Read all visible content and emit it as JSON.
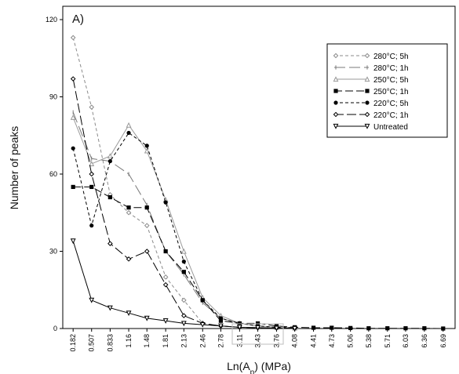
{
  "panel_label": "A)",
  "chart_data": {
    "type": "line",
    "title": "",
    "xlabel": "Ln(A",
    "xlabel_sub": "p",
    "xlabel_tail": ") (MPa)",
    "ylabel": "Number of peaks",
    "ylim": [
      0,
      120
    ],
    "yticks": [
      "0",
      "30",
      "60",
      "90",
      "120"
    ],
    "x_tick_labels": [
      "0.182",
      "0.507",
      "0.833",
      "1.16",
      "1.48",
      "1.81",
      "2.13",
      "2.46",
      "2.78",
      "3.11",
      "3.43",
      "3.76",
      "4.08",
      "4.41",
      "4.73",
      "5.06",
      "5.38",
      "5.71",
      "6.03",
      "6.36",
      "6.69"
    ],
    "legend_position": "top-right",
    "series": [
      {
        "name": "280°C; 5h",
        "color": "#8a8a8a",
        "dash": "4,3",
        "marker": "open-diamond",
        "points": [
          [
            0.182,
            113
          ],
          [
            0.507,
            86
          ],
          [
            0.833,
            52
          ],
          [
            1.16,
            45
          ],
          [
            1.48,
            40
          ],
          [
            1.81,
            20
          ],
          [
            2.13,
            11
          ],
          [
            2.46,
            2
          ],
          [
            2.78,
            1
          ],
          [
            3.11,
            0.5
          ],
          [
            3.43,
            0.3
          ],
          [
            3.76,
            0.2
          ],
          [
            4.08,
            0.1
          ]
        ]
      },
      {
        "name": "280°C; 1h",
        "color": "#7a7a7a",
        "dash": "14,5",
        "marker": "bar",
        "points": [
          [
            0.182,
            84
          ],
          [
            0.507,
            66
          ],
          [
            0.833,
            65
          ],
          [
            1.16,
            60
          ],
          [
            1.48,
            48
          ],
          [
            1.81,
            30
          ],
          [
            2.13,
            21
          ],
          [
            2.46,
            10
          ],
          [
            2.78,
            4
          ],
          [
            3.11,
            2
          ],
          [
            3.43,
            1
          ],
          [
            3.76,
            0.5
          ],
          [
            4.08,
            0.2
          ]
        ]
      },
      {
        "name": "250°C; 5h",
        "color": "#9a9a9a",
        "dash": "",
        "marker": "open-triangle",
        "points": [
          [
            0.182,
            82
          ],
          [
            0.507,
            64
          ],
          [
            0.833,
            67
          ],
          [
            1.16,
            79
          ],
          [
            1.48,
            69
          ],
          [
            1.81,
            50
          ],
          [
            2.13,
            30
          ],
          [
            2.46,
            12
          ],
          [
            2.78,
            5
          ],
          [
            3.11,
            2
          ],
          [
            3.43,
            1
          ],
          [
            3.76,
            0.5
          ],
          [
            4.08,
            0.2
          ]
        ]
      },
      {
        "name": "250°C; 1h",
        "color": "#000000",
        "dash": "10,4",
        "marker": "square",
        "points": [
          [
            0.182,
            55
          ],
          [
            0.507,
            55
          ],
          [
            0.833,
            51
          ],
          [
            1.16,
            47
          ],
          [
            1.48,
            47
          ],
          [
            1.81,
            30
          ],
          [
            2.13,
            22
          ],
          [
            2.46,
            11
          ],
          [
            2.78,
            3
          ],
          [
            3.11,
            2
          ],
          [
            3.43,
            2
          ],
          [
            3.76,
            1
          ],
          [
            4.08,
            0.5
          ],
          [
            4.41,
            0.3
          ],
          [
            4.73,
            0.3
          ],
          [
            5.06,
            0.2
          ],
          [
            5.38,
            0.1
          ],
          [
            5.71,
            0.1
          ],
          [
            6.03,
            0.1
          ],
          [
            6.36,
            0.1
          ],
          [
            6.69,
            0
          ]
        ]
      },
      {
        "name": "220°C; 5h",
        "color": "#000000",
        "dash": "4,3",
        "marker": "circle",
        "points": [
          [
            0.182,
            70
          ],
          [
            0.507,
            40
          ],
          [
            0.833,
            65
          ],
          [
            1.16,
            76
          ],
          [
            1.48,
            71
          ],
          [
            1.81,
            49
          ],
          [
            2.13,
            26
          ],
          [
            2.46,
            11
          ],
          [
            2.78,
            4
          ],
          [
            3.11,
            2
          ],
          [
            3.43,
            1
          ],
          [
            3.76,
            0.5
          ],
          [
            4.08,
            0.3
          ]
        ]
      },
      {
        "name": "220°C; 1h",
        "color": "#000000",
        "dash": "12,4",
        "marker": "open-diamond",
        "points": [
          [
            0.182,
            97
          ],
          [
            0.507,
            60
          ],
          [
            0.833,
            33
          ],
          [
            1.16,
            27
          ],
          [
            1.48,
            30
          ],
          [
            1.81,
            17
          ],
          [
            2.13,
            5
          ],
          [
            2.46,
            2
          ],
          [
            2.78,
            1
          ],
          [
            3.11,
            0.5
          ],
          [
            3.43,
            0.3
          ],
          [
            3.76,
            0.2
          ],
          [
            4.08,
            0.1
          ]
        ]
      },
      {
        "name": "Untreated",
        "color": "#000000",
        "dash": "",
        "marker": "open-triangle-down",
        "points": [
          [
            0.182,
            34
          ],
          [
            0.507,
            11
          ],
          [
            0.833,
            8
          ],
          [
            1.16,
            6
          ],
          [
            1.48,
            4
          ],
          [
            1.81,
            3
          ],
          [
            2.13,
            2
          ],
          [
            2.46,
            1.5
          ],
          [
            2.78,
            1
          ],
          [
            3.11,
            0.5
          ],
          [
            3.43,
            0.3
          ],
          [
            3.76,
            0.1
          ],
          [
            4.08,
            0
          ]
        ]
      }
    ]
  }
}
